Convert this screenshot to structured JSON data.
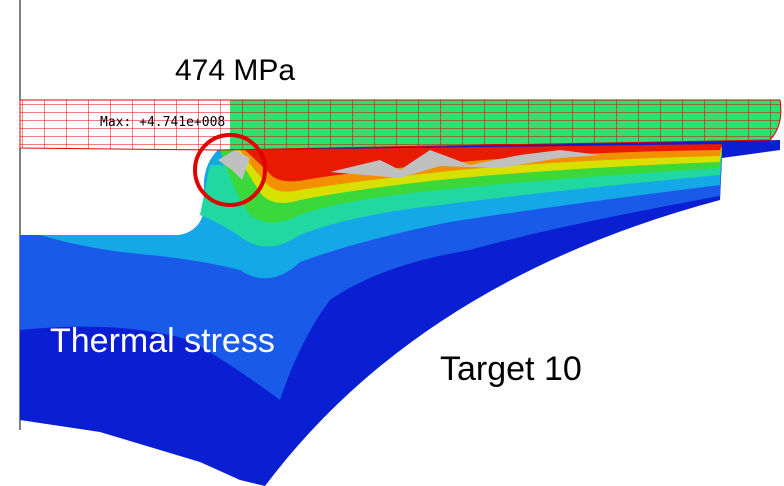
{
  "annotations": {
    "peak": "474 MPa",
    "max_label": "Max: +4.741e+008",
    "load_case": "Thermal stress",
    "target": "Target 10"
  }
}
